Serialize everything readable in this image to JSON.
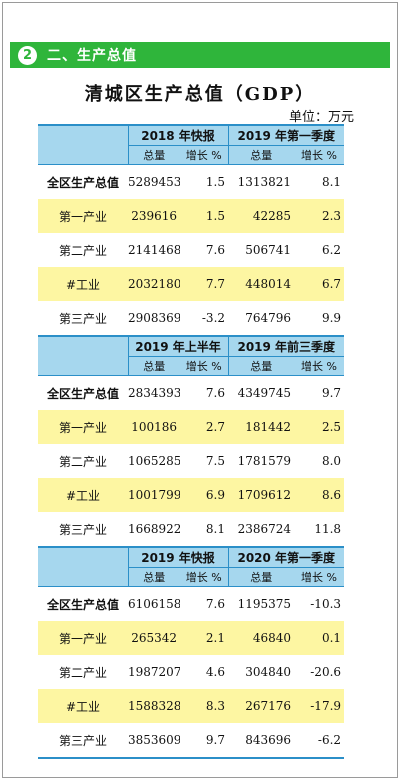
{
  "section": {
    "number": "2",
    "title": "二、生产总值"
  },
  "title": "清城区生产总值（GDP）",
  "unit": "单位：万元",
  "subheaders": {
    "total": "总量",
    "growth": "增长 %"
  },
  "blocks": [
    {
      "periods": [
        "2018 年快报",
        "2019 年第一季度"
      ],
      "rows": [
        {
          "name": "全区生产总值",
          "v1": "5289453",
          "g1": "1.5",
          "v2": "1313821",
          "g2": "8.1"
        },
        {
          "name": "第一产业",
          "v1": "239616",
          "g1": "1.5",
          "v2": "42285",
          "g2": "2.3"
        },
        {
          "name": "第二产业",
          "v1": "2141468",
          "g1": "7.6",
          "v2": "506741",
          "g2": "6.2"
        },
        {
          "name": "#工业",
          "v1": "2032180",
          "g1": "7.7",
          "v2": "448014",
          "g2": "6.7"
        },
        {
          "name": "第三产业",
          "v1": "2908369",
          "g1": "-3.2",
          "v2": "764796",
          "g2": "9.9"
        }
      ]
    },
    {
      "periods": [
        "2019 年上半年",
        "2019 年前三季度"
      ],
      "rows": [
        {
          "name": "全区生产总值",
          "v1": "2834393",
          "g1": "7.6",
          "v2": "4349745",
          "g2": "9.7"
        },
        {
          "name": "第一产业",
          "v1": "100186",
          "g1": "2.7",
          "v2": "181442",
          "g2": "2.5"
        },
        {
          "name": "第二产业",
          "v1": "1065285",
          "g1": "7.5",
          "v2": "1781579",
          "g2": "8.0"
        },
        {
          "name": "#工业",
          "v1": "1001799",
          "g1": "6.9",
          "v2": "1709612",
          "g2": "8.6"
        },
        {
          "name": "第三产业",
          "v1": "1668922",
          "g1": "8.1",
          "v2": "2386724",
          "g2": "11.8"
        }
      ]
    },
    {
      "periods": [
        "2019 年快报",
        "2020 年第一季度"
      ],
      "rows": [
        {
          "name": "全区生产总值",
          "v1": "6106158",
          "g1": "7.6",
          "v2": "1195375",
          "g2": "-10.3"
        },
        {
          "name": "第一产业",
          "v1": "265342",
          "g1": "2.1",
          "v2": "46840",
          "g2": "0.1"
        },
        {
          "name": "第二产业",
          "v1": "1987207",
          "g1": "4.6",
          "v2": "304840",
          "g2": "-20.6"
        },
        {
          "name": "#工业",
          "v1": "1588328",
          "g1": "8.3",
          "v2": "267176",
          "g2": "-17.9"
        },
        {
          "name": "第三产业",
          "v1": "3853609",
          "g1": "9.7",
          "v2": "843696",
          "g2": "-6.2"
        }
      ]
    }
  ]
}
